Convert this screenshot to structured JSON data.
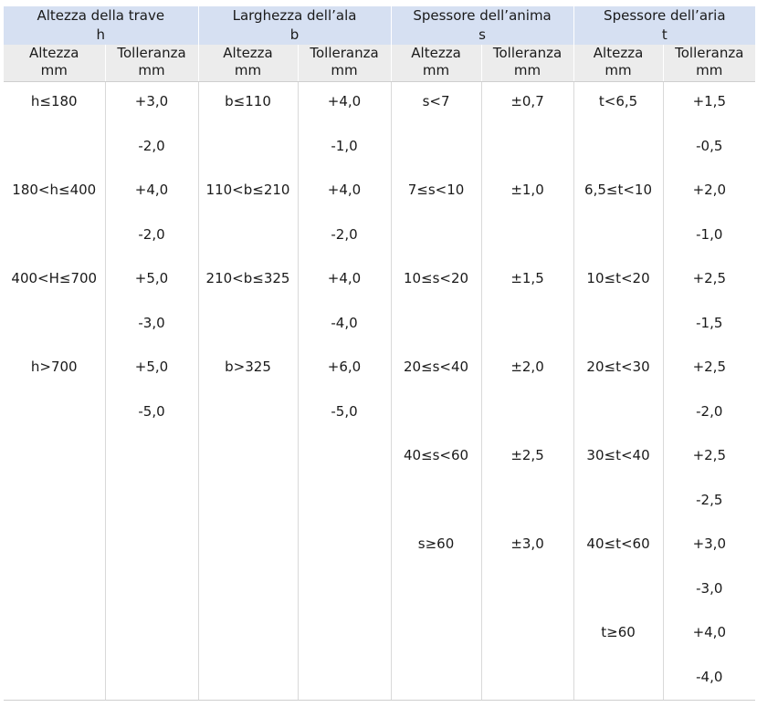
{
  "groups": [
    {
      "title": "Altezza della trave",
      "symbol": "h"
    },
    {
      "title": "Larghezza dell’ala",
      "symbol": "b"
    },
    {
      "title": "Spessore dell’anima",
      "symbol": "s"
    },
    {
      "title": "Spessore dell’aria",
      "symbol": "t"
    }
  ],
  "subheaders": [
    {
      "label": "Altezza",
      "unit": "mm"
    },
    {
      "label": "Tolleranza",
      "unit": "mm"
    },
    {
      "label": "Altezza",
      "unit": "mm"
    },
    {
      "label": "Tolleranza",
      "unit": "mm"
    },
    {
      "label": "Altezza",
      "unit": "mm"
    },
    {
      "label": "Tolleranza",
      "unit": "mm"
    },
    {
      "label": "Altezza",
      "unit": "mm"
    },
    {
      "label": "Tolleranza",
      "unit": "mm"
    }
  ],
  "rows": [
    [
      "h≤180",
      "+3,0",
      "b≤110",
      "+4,0",
      "s<7",
      "±0,7",
      "t<6,5",
      "+1,5"
    ],
    [
      "",
      "-2,0",
      "",
      "-1,0",
      "",
      "",
      "",
      "-0,5"
    ],
    [
      "180<h≤400",
      "+4,0",
      "110<b≤210",
      "+4,0",
      "7≤s<10",
      "±1,0",
      "6,5≤t<10",
      "+2,0"
    ],
    [
      "",
      "-2,0",
      "",
      "-2,0",
      "",
      "",
      "",
      "-1,0"
    ],
    [
      "400<H≤700",
      "+5,0",
      "210<b≤325",
      "+4,0",
      "10≤s<20",
      "±1,5",
      "10≤t<20",
      "+2,5"
    ],
    [
      "",
      "-3,0",
      "",
      "-4,0",
      "",
      "",
      "",
      "-1,5"
    ],
    [
      "h>700",
      "+5,0",
      "b>325",
      "+6,0",
      "20≤s<40",
      "±2,0",
      "20≤t<30",
      "+2,5"
    ],
    [
      "",
      "-5,0",
      "",
      "-5,0",
      "",
      "",
      "",
      "-2,0"
    ],
    [
      "",
      "",
      "",
      "",
      "40≤s<60",
      "±2,5",
      "30≤t<40",
      "+2,5"
    ],
    [
      "",
      "",
      "",
      "",
      "",
      "",
      "",
      "-2,5"
    ],
    [
      "",
      "",
      "",
      "",
      "s≥60",
      "±3,0",
      "40≤t<60",
      "+3,0"
    ],
    [
      "",
      "",
      "",
      "",
      "",
      "",
      "",
      "-3,0"
    ],
    [
      "",
      "",
      "",
      "",
      "",
      "",
      "t≥60",
      "+4,0"
    ],
    [
      "",
      "",
      "",
      "",
      "",
      "",
      "",
      "-4,0"
    ]
  ]
}
